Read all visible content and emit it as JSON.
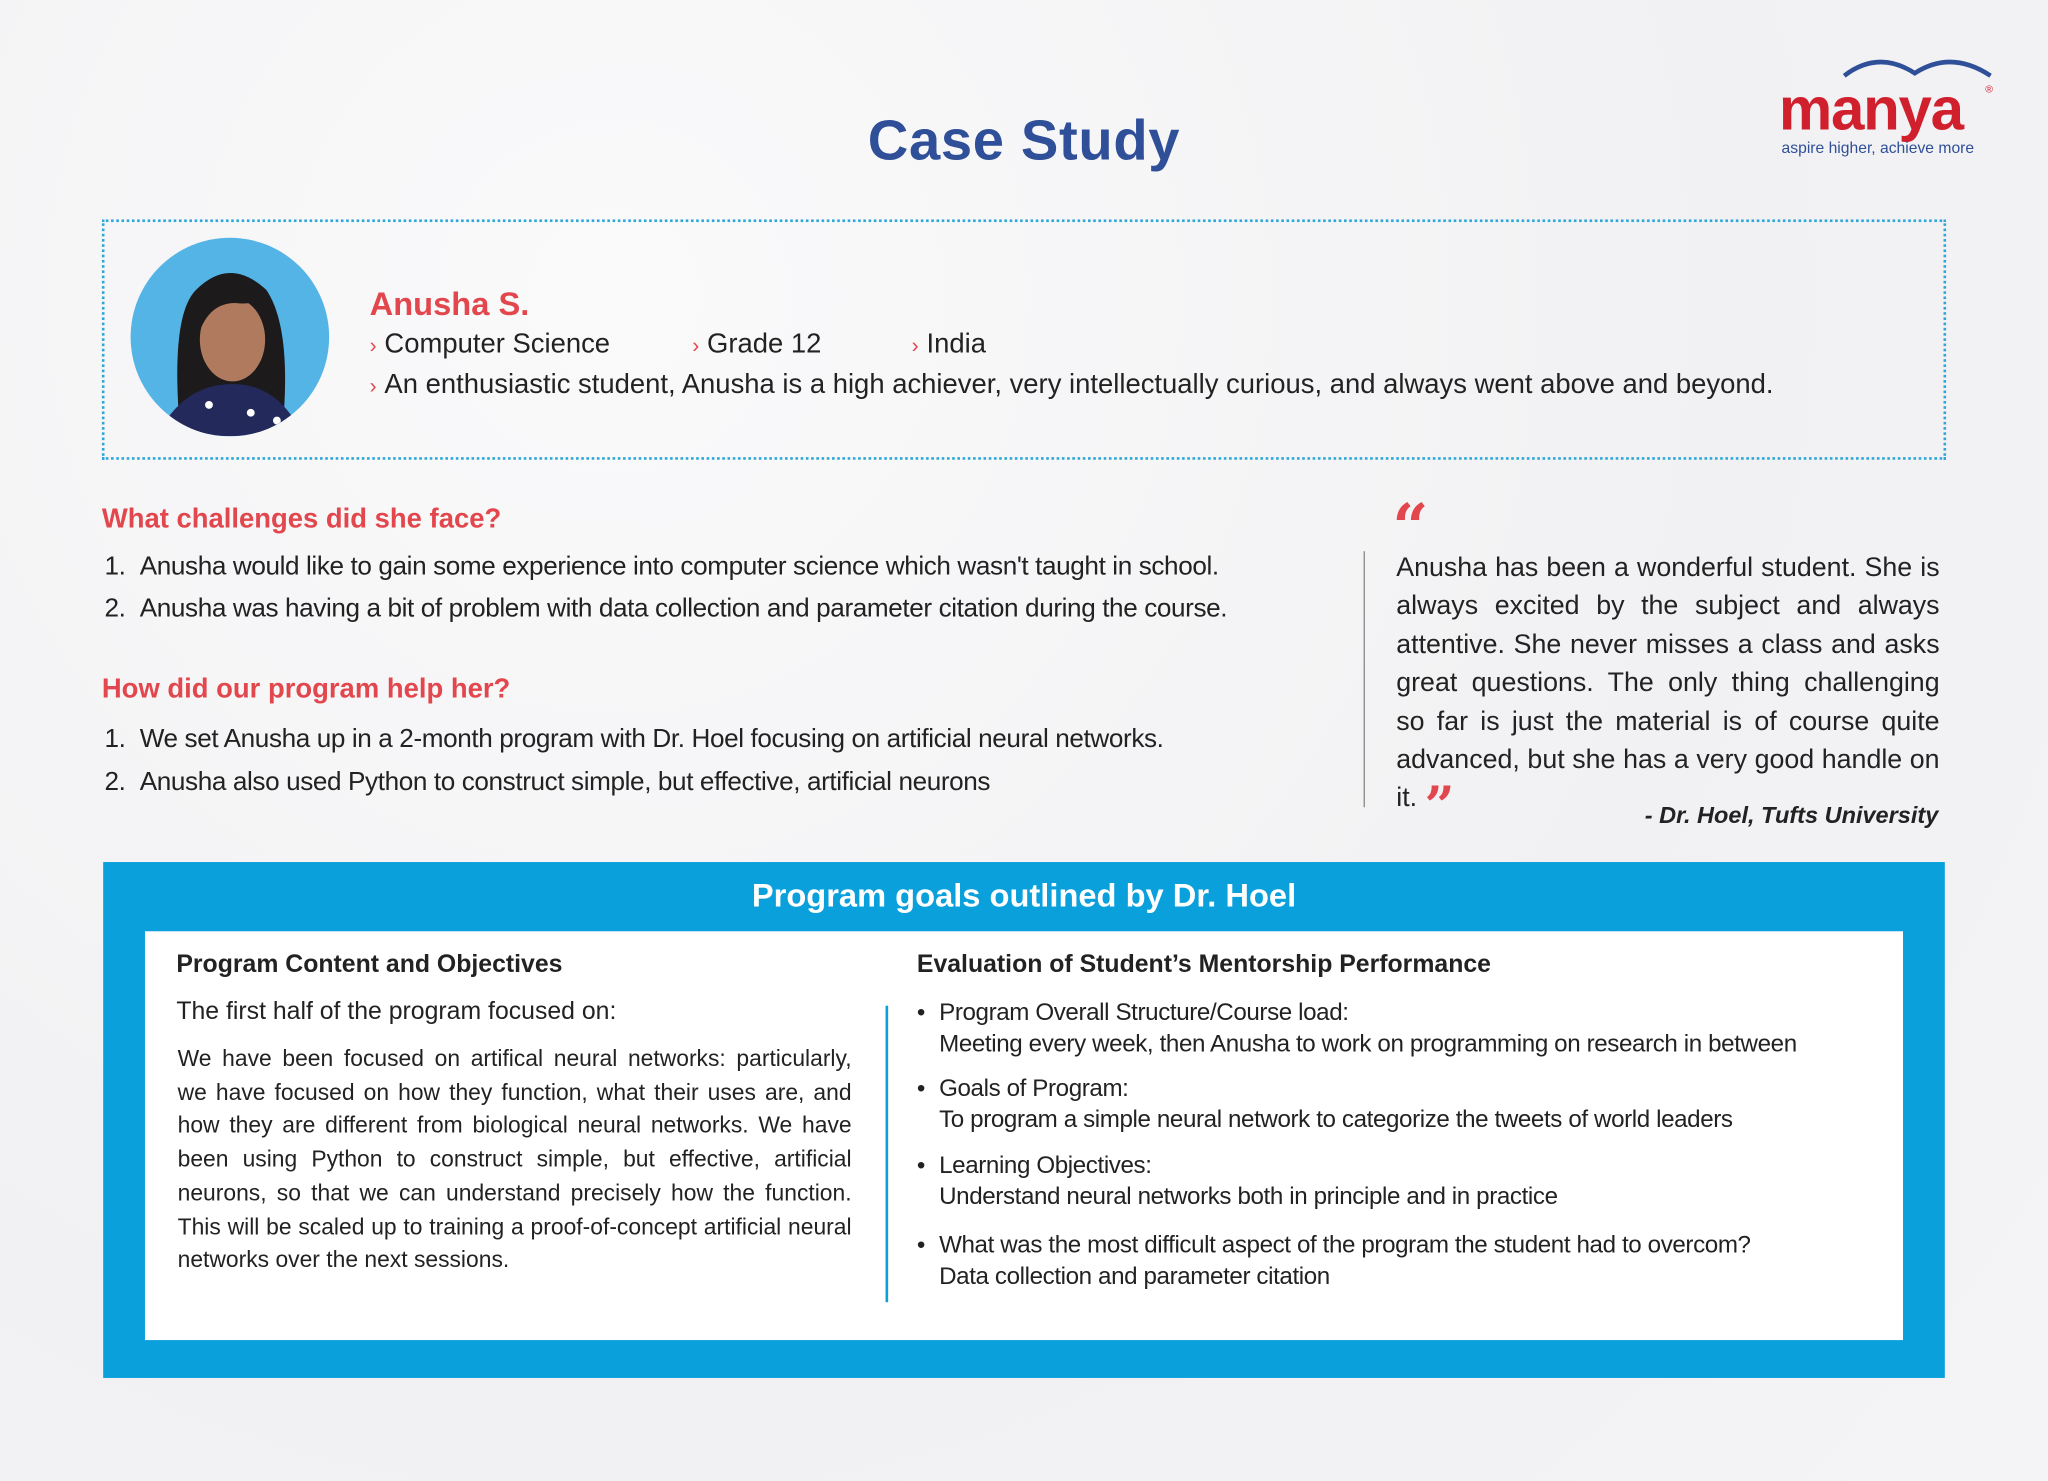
{
  "header": {
    "title": "Case Study"
  },
  "logo": {
    "word": "manya",
    "registered": "®",
    "tagline": "aspire higher, achieve more",
    "brand_red": "#d0202e",
    "brand_blue": "#2f4f99"
  },
  "profile": {
    "name": "Anusha S.",
    "subject": "Computer Science",
    "grade": "Grade 12",
    "country": "India",
    "description": "An enthusiastic student, Anusha is a high achiever, very intellectually curious, and always went above and beyond.",
    "bullet_icon": "chevron-right-icon"
  },
  "challenges": {
    "heading": "What challenges did she face?",
    "items": [
      {
        "num": "1.",
        "text": "Anusha would like to gain some experience into computer science which wasn't taught in school."
      },
      {
        "num": "2.",
        "text": "Anusha was having a bit of problem with data collection and parameter citation during the course."
      }
    ]
  },
  "help": {
    "heading": "How did our program help her?",
    "items": [
      {
        "num": "1.",
        "text": "We set Anusha up in a 2-month program with Dr. Hoel focusing on artificial neural networks."
      },
      {
        "num": "2.",
        "text": "Anusha also used Python to construct simple, but effective, artificial neurons"
      }
    ]
  },
  "testimonial": {
    "open_quote": "“",
    "close_quote": "”",
    "text": "Anusha has been a wonderful student. She is always excited by the subject and always attentive. She never misses a class and asks great questions. The only thing challenging so far is just the material is of course quite advanced, but she has a very good handle on it.",
    "attribution": "- Dr. Hoel, Tufts University"
  },
  "goals": {
    "title": "Program goals outlined by Dr. Hoel",
    "accent": "#0aa0dc",
    "left": {
      "heading": "Program Content and Objectives",
      "subheading": "The first half of the program focused on:",
      "paragraph": "We have been focused on artifical neural networks: particularly, we have focused on how they function, what their uses are, and how they are different from biological neural networks. We have been using Python to construct simple, but effective, artificial neurons, so that we can understand precisely how the function. This will be scaled up to training a proof-of-concept artificial neural networks over the next sessions."
    },
    "right": {
      "heading": "Evaluation of Student’s Mentorship Performance",
      "items": [
        {
          "label": "Program Overall Structure/Course load:",
          "detail": "Meeting every week, then Anusha to work on programming on research in between"
        },
        {
          "label": "Goals of Program:",
          "detail": "To program a simple neural network to categorize the tweets of world leaders"
        },
        {
          "label": "Learning Objectives:",
          "detail": "Understand neural networks both in principle and in practice"
        },
        {
          "label": "What was the most difficult aspect of the program the student had to overcom?",
          "detail": "Data collection and parameter citation"
        }
      ]
    }
  }
}
